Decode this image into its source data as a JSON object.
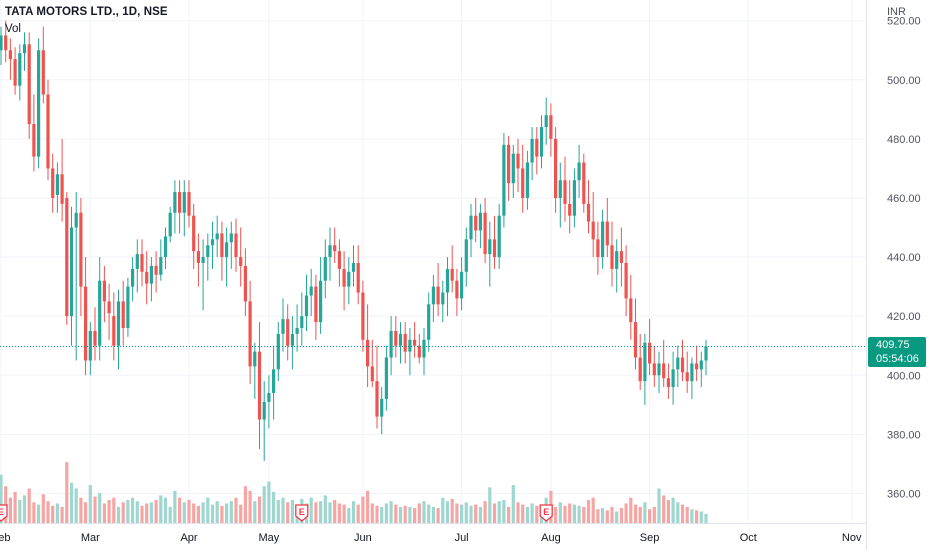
{
  "header": {
    "title": "TATA MOTORS LTD., 1D, NSE",
    "volume_label": "Vol",
    "currency": "INR"
  },
  "last_price": {
    "price": "409.75",
    "countdown": "05:54:06",
    "value": 409.75
  },
  "colors": {
    "up": "#26a69a",
    "down": "#ef5350",
    "up_vol": "#9fd6cf",
    "down_vol": "#f5a6a4",
    "grid": "#f0f3fa",
    "text": "#131722",
    "axis_text": "#50535e",
    "price_line": "#089981",
    "event_badge": "#f23645"
  },
  "event_marker_label": "E",
  "chart_data": {
    "type": "candlestick",
    "title": "TATA MOTORS LTD., 1D, NSE",
    "y_unit": "INR",
    "ylim": [
      350,
      527
    ],
    "y_ticks": [
      {
        "label": "520.00",
        "value": 520
      },
      {
        "label": "500.00",
        "value": 500
      },
      {
        "label": "480.00",
        "value": 480
      },
      {
        "label": "460.00",
        "value": 460
      },
      {
        "label": "440.00",
        "value": 440
      },
      {
        "label": "420.00",
        "value": 420
      },
      {
        "label": "400.00",
        "value": 400
      },
      {
        "label": "380.00",
        "value": 380
      },
      {
        "label": "360.00",
        "value": 360
      }
    ],
    "x_ticks": [
      {
        "label": "Feb",
        "bar": 0
      },
      {
        "label": "Mar",
        "bar": 19
      },
      {
        "label": "Apr",
        "bar": 40
      },
      {
        "label": "May",
        "bar": 57
      },
      {
        "label": "Jun",
        "bar": 77
      },
      {
        "label": "Jul",
        "bar": 98
      },
      {
        "label": "Aug",
        "bar": 117
      },
      {
        "label": "Sep",
        "bar": 138
      },
      {
        "label": "Oct",
        "bar": 159
      },
      {
        "label": "Nov",
        "bar": 181
      }
    ],
    "earnings_marker_bars": [
      0,
      64,
      116
    ],
    "grid": true,
    "volume_scale_max": 100,
    "series": [
      {
        "ohlc": [
          [
            510,
            518,
            505,
            515
          ],
          [
            515,
            520,
            506,
            510
          ],
          [
            510,
            514,
            500,
            507
          ],
          [
            507,
            511,
            495,
            498
          ],
          [
            498,
            512,
            493,
            509
          ],
          [
            509,
            516,
            503,
            512
          ],
          [
            512,
            516,
            480,
            485
          ],
          [
            485,
            495,
            469,
            474
          ],
          [
            474,
            514,
            470,
            510
          ],
          [
            510,
            518,
            492,
            495
          ],
          [
            495,
            500,
            466,
            470
          ],
          [
            470,
            475,
            455,
            460
          ],
          [
            461,
            472,
            455,
            468
          ],
          [
            468,
            480,
            452,
            458
          ],
          [
            460,
            462,
            417,
            420
          ],
          [
            420,
            457,
            410,
            450
          ],
          [
            450,
            462,
            405,
            455
          ],
          [
            455,
            460,
            420,
            430
          ],
          [
            430,
            440,
            400,
            405
          ],
          [
            405,
            418,
            400,
            415
          ],
          [
            415,
            423,
            405,
            410
          ],
          [
            410,
            440,
            405,
            432
          ],
          [
            432,
            437,
            418,
            425
          ],
          [
            425,
            431,
            412,
            421
          ],
          [
            420,
            428,
            405,
            410
          ],
          [
            410,
            429,
            402,
            425
          ],
          [
            425,
            432,
            410,
            416
          ],
          [
            416,
            433,
            413,
            430
          ],
          [
            430,
            440,
            425,
            436
          ],
          [
            436,
            446,
            428,
            441
          ],
          [
            441,
            446,
            430,
            435
          ],
          [
            435,
            442,
            424,
            431
          ],
          [
            431,
            440,
            425,
            437
          ],
          [
            437,
            442,
            428,
            434
          ],
          [
            434,
            446,
            432,
            440
          ],
          [
            440,
            450,
            436,
            447
          ],
          [
            447,
            457,
            445,
            455
          ],
          [
            455,
            466,
            448,
            462
          ],
          [
            462,
            466,
            448,
            455
          ],
          [
            455,
            466,
            447,
            462
          ],
          [
            462,
            466,
            450,
            454
          ],
          [
            454,
            458,
            436,
            442
          ],
          [
            442,
            448,
            430,
            438
          ],
          [
            438,
            446,
            422,
            440
          ],
          [
            440,
            448,
            432,
            444
          ],
          [
            444,
            452,
            436,
            446
          ],
          [
            446,
            454,
            440,
            448
          ],
          [
            448,
            452,
            432,
            440
          ],
          [
            440,
            450,
            430,
            445
          ],
          [
            445,
            452,
            436,
            448
          ],
          [
            448,
            453,
            435,
            440
          ],
          [
            440,
            450,
            430,
            437
          ],
          [
            437,
            443,
            420,
            425
          ],
          [
            425,
            432,
            397,
            403
          ],
          [
            403,
            411,
            392,
            408
          ],
          [
            408,
            418,
            375,
            385
          ],
          [
            385,
            398,
            371,
            391
          ],
          [
            391,
            400,
            382,
            394
          ],
          [
            394,
            410,
            385,
            402
          ],
          [
            402,
            418,
            398,
            414
          ],
          [
            414,
            426,
            408,
            419
          ],
          [
            419,
            424,
            405,
            410
          ],
          [
            410,
            420,
            402,
            414
          ],
          [
            414,
            424,
            408,
            416
          ],
          [
            416,
            428,
            410,
            420
          ],
          [
            420,
            434,
            415,
            427
          ],
          [
            427,
            436,
            420,
            430
          ],
          [
            430,
            434,
            412,
            418
          ],
          [
            418,
            440,
            414,
            432
          ],
          [
            432,
            446,
            426,
            440
          ],
          [
            440,
            450,
            432,
            444
          ],
          [
            444,
            450,
            438,
            442
          ],
          [
            442,
            446,
            430,
            436
          ],
          [
            436,
            442,
            422,
            430
          ],
          [
            430,
            440,
            424,
            435
          ],
          [
            435,
            444,
            430,
            438
          ],
          [
            438,
            444,
            424,
            428
          ],
          [
            428,
            432,
            408,
            412
          ],
          [
            412,
            424,
            396,
            403
          ],
          [
            403,
            412,
            396,
            398
          ],
          [
            398,
            410,
            382,
            386
          ],
          [
            386,
            396,
            380,
            392
          ],
          [
            392,
            410,
            388,
            406
          ],
          [
            406,
            420,
            400,
            415
          ],
          [
            415,
            420,
            406,
            410
          ],
          [
            410,
            418,
            404,
            414
          ],
          [
            414,
            418,
            404,
            408
          ],
          [
            408,
            416,
            400,
            412
          ],
          [
            412,
            418,
            406,
            410
          ],
          [
            410,
            414,
            404,
            406
          ],
          [
            406,
            416,
            400,
            412
          ],
          [
            412,
            428,
            408,
            424
          ],
          [
            424,
            434,
            418,
            430
          ],
          [
            430,
            438,
            420,
            424
          ],
          [
            424,
            432,
            418,
            428
          ],
          [
            428,
            440,
            420,
            436
          ],
          [
            436,
            444,
            428,
            432
          ],
          [
            432,
            436,
            420,
            426
          ],
          [
            426,
            440,
            422,
            435
          ],
          [
            435,
            450,
            430,
            446
          ],
          [
            446,
            458,
            440,
            454
          ],
          [
            454,
            460,
            445,
            449
          ],
          [
            449,
            458,
            443,
            455
          ],
          [
            455,
            460,
            438,
            441
          ],
          [
            441,
            452,
            430,
            446
          ],
          [
            446,
            454,
            436,
            440
          ],
          [
            440,
            458,
            436,
            454
          ],
          [
            454,
            482,
            450,
            478
          ],
          [
            478,
            481,
            459,
            465
          ],
          [
            465,
            478,
            460,
            475
          ],
          [
            475,
            480,
            462,
            470
          ],
          [
            470,
            478,
            455,
            460
          ],
          [
            460,
            476,
            456,
            472
          ],
          [
            472,
            484,
            466,
            480
          ],
          [
            480,
            484,
            468,
            474
          ],
          [
            474,
            488,
            470,
            484
          ],
          [
            484,
            494,
            478,
            488
          ],
          [
            488,
            492,
            474,
            480
          ],
          [
            480,
            484,
            455,
            460
          ],
          [
            460,
            472,
            450,
            466
          ],
          [
            466,
            474,
            452,
            458
          ],
          [
            458,
            466,
            448,
            454
          ],
          [
            454,
            470,
            450,
            466
          ],
          [
            466,
            478,
            460,
            472
          ],
          [
            472,
            475,
            455,
            458
          ],
          [
            458,
            466,
            448,
            452
          ],
          [
            452,
            462,
            440,
            446
          ],
          [
            446,
            452,
            434,
            440
          ],
          [
            440,
            456,
            436,
            452
          ],
          [
            452,
            460,
            440,
            444
          ],
          [
            444,
            452,
            430,
            436
          ],
          [
            436,
            446,
            428,
            442
          ],
          [
            442,
            450,
            430,
            438
          ],
          [
            438,
            444,
            420,
            426
          ],
          [
            426,
            434,
            412,
            418
          ],
          [
            418,
            426,
            402,
            406
          ],
          [
            406,
            414,
            395,
            398
          ],
          [
            398,
            414,
            390,
            411
          ],
          [
            411,
            419,
            400,
            404
          ],
          [
            404,
            410,
            396,
            400
          ],
          [
            400,
            408,
            394,
            404
          ],
          [
            404,
            412,
            396,
            399
          ],
          [
            399,
            404,
            392,
            396
          ],
          [
            396,
            408,
            390,
            402
          ],
          [
            402,
            410,
            396,
            406
          ],
          [
            406,
            412,
            398,
            401
          ],
          [
            401,
            408,
            394,
            398
          ],
          [
            398,
            406,
            392,
            404
          ],
          [
            404,
            410,
            398,
            402
          ],
          [
            402,
            408,
            396,
            405
          ],
          [
            405,
            412,
            400,
            409.75
          ]
        ],
        "volume": [
          42,
          32,
          22,
          27,
          20,
          24,
          30,
          18,
          16,
          25,
          19,
          15,
          17,
          14,
          53,
          35,
          30,
          22,
          18,
          33,
          23,
          26,
          17,
          20,
          22,
          14,
          18,
          20,
          22,
          19,
          15,
          17,
          18,
          20,
          24,
          22,
          14,
          28,
          22,
          18,
          20,
          17,
          15,
          18,
          22,
          16,
          19,
          15,
          17,
          19,
          22,
          16,
          32,
          28,
          19,
          23,
          32,
          36,
          27,
          20,
          22,
          18,
          20,
          14,
          21,
          17,
          22,
          18,
          19,
          24,
          18,
          20,
          17,
          16,
          13,
          19,
          16,
          23,
          28,
          17,
          15,
          14,
          17,
          19,
          16,
          14,
          15,
          14,
          13,
          17,
          19,
          16,
          14,
          13,
          22,
          19,
          21,
          17,
          16,
          18,
          15,
          16,
          14,
          19,
          31,
          17,
          19,
          20,
          14,
          33,
          18,
          16,
          14,
          17,
          15,
          14,
          22,
          28,
          14,
          18,
          15,
          17,
          16,
          15,
          14,
          20,
          22,
          12,
          13,
          11,
          14,
          10,
          13,
          17,
          22,
          16,
          14,
          18,
          12,
          14,
          30,
          24,
          20,
          22,
          18,
          16,
          14,
          12,
          11,
          10,
          8,
          3
        ]
      }
    ]
  }
}
